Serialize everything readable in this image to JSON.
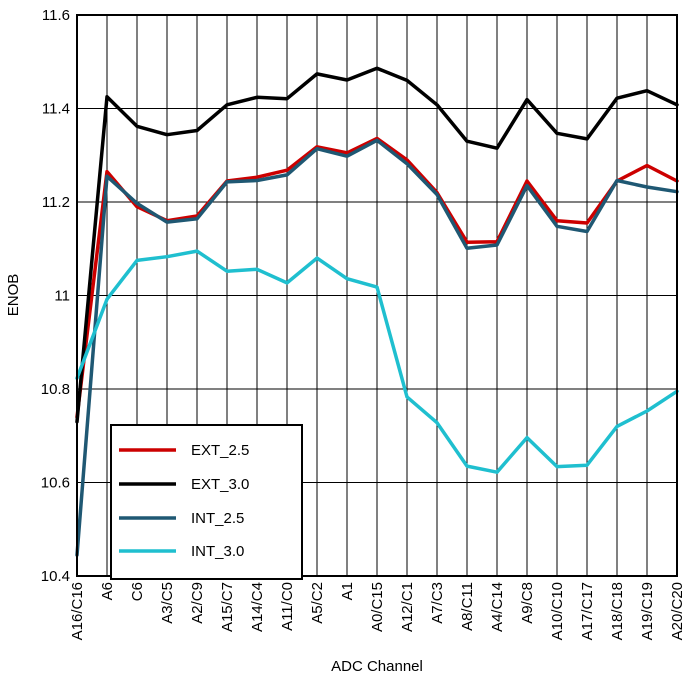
{
  "chart_data": {
    "type": "line",
    "title": "",
    "xlabel": "ADC Channel",
    "ylabel": "ENOB",
    "ylim": [
      10.4,
      11.6
    ],
    "yticks": [
      "10.4",
      "10.6",
      "10.8",
      "11",
      "11.2",
      "11.4",
      "11.6"
    ],
    "grid": true,
    "legend_position": "bottom-left",
    "categories": [
      "A16/C16",
      "A6",
      "C6",
      "A3/C5",
      "A2/C9",
      "A15/C7",
      "A14/C4",
      "A11/C0",
      "A5/C2",
      "A1",
      "A0/C15",
      "A12/C1",
      "A7/C3",
      "A8/C11",
      "A4/C14",
      "A9/C8",
      "A10/C10",
      "A17/C17",
      "A18/C18",
      "A19/C19",
      "A20/C20"
    ],
    "series": [
      {
        "name": "EXT_2.5",
        "color": "#cc0000",
        "values": [
          10.74,
          11.265,
          11.19,
          11.16,
          11.17,
          11.245,
          11.253,
          11.268,
          11.318,
          11.305,
          11.336,
          11.29,
          11.22,
          11.114,
          11.115,
          11.245,
          11.16,
          11.155,
          11.245,
          11.278,
          11.245
        ]
      },
      {
        "name": "EXT_3.0",
        "color": "#000000",
        "values": [
          10.73,
          11.425,
          11.362,
          11.344,
          11.353,
          11.408,
          11.424,
          11.421,
          11.474,
          11.461,
          11.486,
          11.46,
          11.408,
          11.33,
          11.315,
          11.419,
          11.347,
          11.335,
          11.422,
          11.438,
          11.408
        ]
      },
      {
        "name": "INT_2.5",
        "color": "#1f5873",
        "values": [
          10.445,
          11.255,
          11.197,
          11.157,
          11.164,
          11.243,
          11.246,
          11.258,
          11.314,
          11.298,
          11.332,
          11.282,
          11.216,
          11.101,
          11.108,
          11.235,
          11.148,
          11.137,
          11.246,
          11.232,
          11.222
        ]
      },
      {
        "name": "INT_3.0",
        "color": "#1fbfcf",
        "values": [
          10.823,
          10.992,
          11.075,
          11.083,
          11.095,
          11.052,
          11.056,
          11.027,
          11.08,
          11.036,
          11.018,
          10.783,
          10.728,
          10.635,
          10.622,
          10.696,
          10.634,
          10.637,
          10.72,
          10.753,
          10.795
        ]
      }
    ]
  }
}
